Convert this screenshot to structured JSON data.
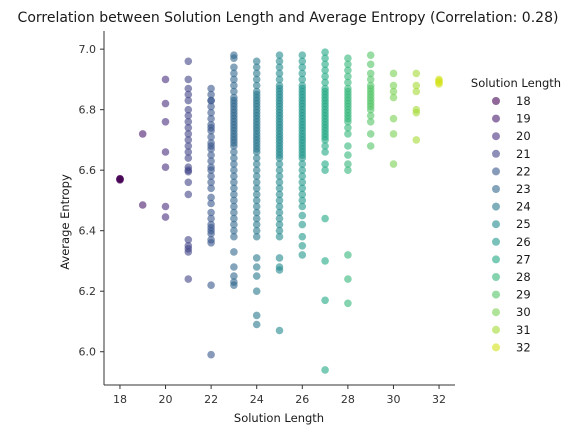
{
  "chart_data": {
    "type": "scatter",
    "title": "Correlation between Solution Length and Average Entropy (Correlation: 0.28)",
    "xlabel": "Solution Length",
    "ylabel": "Average Entropy",
    "xlim": [
      17.3,
      32.7
    ],
    "ylim": [
      5.89,
      7.06
    ],
    "x_ticks": [
      18,
      20,
      22,
      24,
      26,
      28,
      30,
      32
    ],
    "y_ticks": [
      6.0,
      6.2,
      6.4,
      6.6,
      6.8,
      7.0
    ],
    "x_tick_labels": [
      "18",
      "20",
      "22",
      "24",
      "26",
      "28",
      "30",
      "32"
    ],
    "y_tick_labels": [
      "6.0",
      "6.2",
      "6.4",
      "6.6",
      "6.8",
      "7.0"
    ],
    "grid": false,
    "legend": {
      "title": "Solution Length",
      "placement": "right",
      "entries": [
        "18",
        "19",
        "20",
        "21",
        "22",
        "23",
        "24",
        "25",
        "26",
        "27",
        "28",
        "29",
        "30",
        "31",
        "32"
      ]
    },
    "marker_alpha": 0.6,
    "colors": {
      "18": "#440154",
      "19": "#481a6c",
      "20": "#472f7d",
      "21": "#414487",
      "22": "#39568c",
      "23": "#31688e",
      "24": "#2a788e",
      "25": "#23888e",
      "26": "#1f988b",
      "27": "#22a884",
      "28": "#35b779",
      "29": "#54c568",
      "30": "#7ad151",
      "31": "#a5db36",
      "32": "#d2e21b"
    },
    "series": [
      {
        "name": "18",
        "x": [
          18,
          18,
          18,
          18
        ],
        "y": [
          6.57,
          6.572,
          6.568,
          6.571
        ]
      },
      {
        "name": "19",
        "x": [
          19,
          19
        ],
        "y": [
          6.72,
          6.485
        ]
      },
      {
        "name": "20",
        "x": [
          20,
          20,
          20,
          20,
          20,
          20,
          20
        ],
        "y": [
          6.9,
          6.82,
          6.76,
          6.66,
          6.61,
          6.48,
          6.445
        ]
      },
      {
        "name": "21",
        "x": [
          21,
          21,
          21,
          21,
          21,
          21,
          21,
          21,
          21,
          21,
          21,
          21,
          21,
          21,
          21,
          21,
          21,
          21,
          21,
          21,
          21,
          21,
          21,
          21
        ],
        "y": [
          6.96,
          6.9,
          6.87,
          6.85,
          6.83,
          6.8,
          6.78,
          6.76,
          6.74,
          6.72,
          6.7,
          6.68,
          6.66,
          6.64,
          6.61,
          6.6,
          6.595,
          6.56,
          6.52,
          6.37,
          6.35,
          6.34,
          6.33,
          6.24
        ]
      },
      {
        "name": "22",
        "x": [
          22,
          22,
          22,
          22,
          22,
          22,
          22,
          22,
          22,
          22,
          22,
          22,
          22,
          22,
          22,
          22,
          22,
          22,
          22,
          22,
          22,
          22,
          22,
          22,
          22,
          22,
          22,
          22,
          22,
          22,
          22,
          22,
          22
        ],
        "y": [
          6.87,
          6.85,
          6.83,
          6.81,
          6.79,
          6.77,
          6.75,
          6.73,
          6.71,
          6.69,
          6.67,
          6.65,
          6.63,
          6.61,
          6.6,
          6.58,
          6.56,
          6.54,
          6.51,
          6.49,
          6.46,
          6.44,
          6.42,
          6.41,
          6.4,
          6.39,
          6.37,
          6.36,
          6.22,
          5.99,
          6.83,
          6.74,
          6.68
        ]
      },
      {
        "name": "23",
        "x": [
          23,
          23,
          23,
          23,
          23,
          23,
          23,
          23,
          23,
          23,
          23,
          23,
          23,
          23,
          23,
          23,
          23,
          23,
          23,
          23,
          23,
          23,
          23,
          23,
          23,
          23,
          23,
          23,
          23,
          23,
          23,
          23,
          23,
          23,
          23,
          23,
          23,
          23,
          23,
          23,
          23,
          23,
          23,
          23
        ],
        "y": [
          6.98,
          6.97,
          6.94,
          6.92,
          6.9,
          6.88,
          6.86,
          6.84,
          6.83,
          6.82,
          6.81,
          6.8,
          6.79,
          6.78,
          6.77,
          6.76,
          6.75,
          6.74,
          6.73,
          6.72,
          6.71,
          6.7,
          6.69,
          6.68,
          6.66,
          6.64,
          6.62,
          6.6,
          6.58,
          6.56,
          6.54,
          6.52,
          6.5,
          6.48,
          6.46,
          6.44,
          6.42,
          6.4,
          6.38,
          6.33,
          6.28,
          6.25,
          6.23,
          6.22
        ]
      },
      {
        "name": "24",
        "x": [
          24,
          24,
          24,
          24,
          24,
          24,
          24,
          24,
          24,
          24,
          24,
          24,
          24,
          24,
          24,
          24,
          24,
          24,
          24,
          24,
          24,
          24,
          24,
          24,
          24,
          24,
          24,
          24,
          24,
          24,
          24,
          24,
          24,
          24,
          24,
          24,
          24,
          24,
          24,
          24,
          24,
          24,
          24,
          24,
          24,
          24
        ],
        "y": [
          6.96,
          6.94,
          6.92,
          6.9,
          6.88,
          6.86,
          6.85,
          6.84,
          6.83,
          6.82,
          6.81,
          6.8,
          6.79,
          6.78,
          6.77,
          6.76,
          6.75,
          6.74,
          6.73,
          6.72,
          6.71,
          6.7,
          6.69,
          6.68,
          6.67,
          6.66,
          6.64,
          6.62,
          6.6,
          6.58,
          6.56,
          6.54,
          6.52,
          6.5,
          6.48,
          6.46,
          6.44,
          6.42,
          6.4,
          6.38,
          6.31,
          6.28,
          6.25,
          6.2,
          6.12,
          6.09
        ]
      },
      {
        "name": "25",
        "x": [
          25,
          25,
          25,
          25,
          25,
          25,
          25,
          25,
          25,
          25,
          25,
          25,
          25,
          25,
          25,
          25,
          25,
          25,
          25,
          25,
          25,
          25,
          25,
          25,
          25,
          25,
          25,
          25,
          25,
          25,
          25,
          25,
          25,
          25,
          25,
          25,
          25,
          25,
          25,
          25,
          25,
          25,
          25,
          25,
          25,
          25,
          25
        ],
        "y": [
          6.98,
          6.96,
          6.94,
          6.92,
          6.9,
          6.88,
          6.87,
          6.86,
          6.85,
          6.84,
          6.83,
          6.82,
          6.81,
          6.8,
          6.79,
          6.78,
          6.77,
          6.76,
          6.75,
          6.74,
          6.73,
          6.72,
          6.71,
          6.7,
          6.69,
          6.68,
          6.67,
          6.66,
          6.65,
          6.64,
          6.62,
          6.6,
          6.58,
          6.56,
          6.54,
          6.52,
          6.5,
          6.48,
          6.46,
          6.44,
          6.42,
          6.4,
          6.38,
          6.31,
          6.28,
          6.27,
          6.07
        ]
      },
      {
        "name": "26",
        "x": [
          26,
          26,
          26,
          26,
          26,
          26,
          26,
          26,
          26,
          26,
          26,
          26,
          26,
          26,
          26,
          26,
          26,
          26,
          26,
          26,
          26,
          26,
          26,
          26,
          26,
          26,
          26,
          26,
          26,
          26,
          26,
          26,
          26,
          26,
          26,
          26,
          26,
          26,
          26,
          26,
          26,
          26,
          26
        ],
        "y": [
          6.98,
          6.96,
          6.94,
          6.92,
          6.9,
          6.88,
          6.87,
          6.86,
          6.85,
          6.84,
          6.83,
          6.82,
          6.81,
          6.8,
          6.79,
          6.78,
          6.77,
          6.76,
          6.75,
          6.74,
          6.73,
          6.72,
          6.71,
          6.7,
          6.69,
          6.68,
          6.67,
          6.66,
          6.65,
          6.64,
          6.62,
          6.6,
          6.58,
          6.56,
          6.54,
          6.52,
          6.5,
          6.48,
          6.45,
          6.42,
          6.38,
          6.35,
          6.32
        ]
      },
      {
        "name": "27",
        "x": [
          27,
          27,
          27,
          27,
          27,
          27,
          27,
          27,
          27,
          27,
          27,
          27,
          27,
          27,
          27,
          27,
          27,
          27,
          27,
          27,
          27,
          27,
          27,
          27,
          27,
          27,
          27,
          27,
          27,
          27,
          27,
          27
        ],
        "y": [
          6.99,
          6.97,
          6.95,
          6.93,
          6.91,
          6.89,
          6.87,
          6.86,
          6.85,
          6.84,
          6.83,
          6.82,
          6.81,
          6.8,
          6.79,
          6.78,
          6.77,
          6.76,
          6.75,
          6.74,
          6.73,
          6.72,
          6.71,
          6.7,
          6.68,
          6.66,
          6.62,
          6.6,
          6.44,
          6.3,
          6.17,
          5.94
        ]
      },
      {
        "name": "28",
        "x": [
          28,
          28,
          28,
          28,
          28,
          28,
          28,
          28,
          28,
          28,
          28,
          28,
          28,
          28,
          28,
          28,
          28,
          28,
          28,
          28,
          28,
          28,
          28,
          28,
          28,
          28
        ],
        "y": [
          6.97,
          6.95,
          6.93,
          6.91,
          6.89,
          6.87,
          6.86,
          6.85,
          6.84,
          6.83,
          6.82,
          6.81,
          6.8,
          6.79,
          6.78,
          6.77,
          6.76,
          6.74,
          6.72,
          6.68,
          6.65,
          6.62,
          6.6,
          6.32,
          6.24,
          6.16
        ]
      },
      {
        "name": "29",
        "x": [
          29,
          29,
          29,
          29,
          29,
          29,
          29,
          29,
          29,
          29,
          29,
          29,
          29,
          29,
          29,
          29,
          29
        ],
        "y": [
          6.98,
          6.95,
          6.92,
          6.9,
          6.88,
          6.87,
          6.86,
          6.85,
          6.84,
          6.83,
          6.82,
          6.81,
          6.8,
          6.78,
          6.76,
          6.72,
          6.68
        ]
      },
      {
        "name": "30",
        "x": [
          30,
          30,
          30,
          30,
          30,
          30,
          30
        ],
        "y": [
          6.92,
          6.88,
          6.86,
          6.84,
          6.77,
          6.72,
          6.62
        ]
      },
      {
        "name": "31",
        "x": [
          31,
          31,
          31,
          31,
          31,
          31
        ],
        "y": [
          6.92,
          6.88,
          6.86,
          6.8,
          6.79,
          6.7
        ]
      },
      {
        "name": "32",
        "x": [
          32,
          32,
          32,
          32
        ],
        "y": [
          6.9,
          6.895,
          6.89,
          6.885
        ]
      }
    ]
  }
}
